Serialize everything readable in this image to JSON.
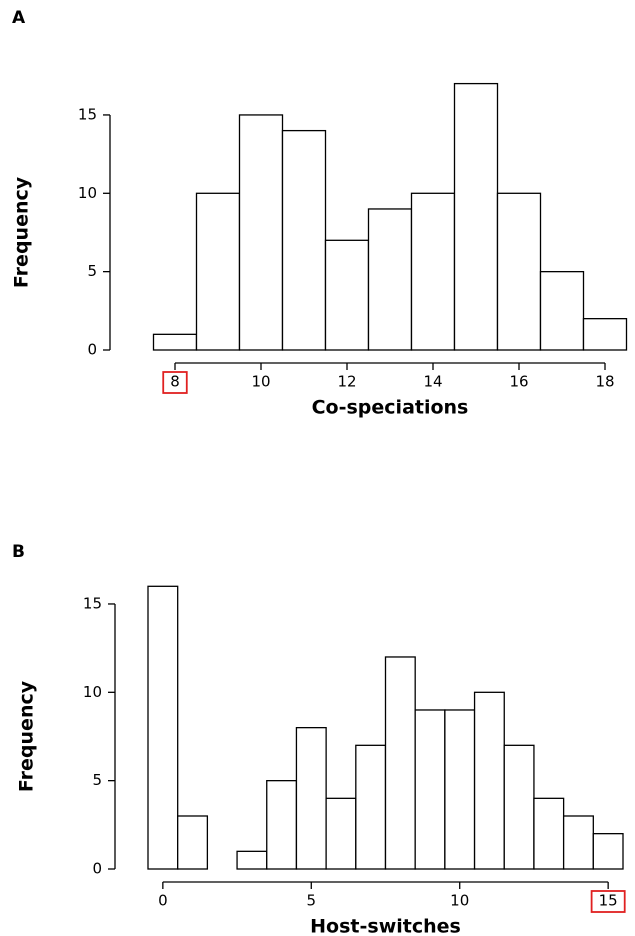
{
  "chart_data": [
    {
      "type": "histogram",
      "panel": "A",
      "xlabel": "Co-speciations",
      "ylabel": "Frequency",
      "bins": [
        7.5,
        8.5,
        9.5,
        10.5,
        11.5,
        12.5,
        13.5,
        14.5,
        15.5,
        16.5,
        17.5,
        18.5
      ],
      "counts": [
        1,
        10,
        15,
        14,
        7,
        9,
        10,
        17,
        10,
        5,
        2
      ],
      "color": "#ffffff",
      "edgecolor": "#000000",
      "xlim": [
        7.5,
        18.5
      ],
      "xticks": [
        8,
        10,
        12,
        14,
        16,
        18
      ],
      "ylim": [
        0,
        17
      ],
      "yticks": [
        0,
        5,
        10,
        15
      ],
      "highlight_xtick": 8,
      "highlight_color": "#e02020"
    },
    {
      "type": "histogram",
      "panel": "B",
      "xlabel": "Host-switches",
      "ylabel": "Frequency",
      "bins": [
        -0.5,
        0.5,
        1.5,
        2.5,
        3.5,
        4.5,
        5.5,
        6.5,
        7.5,
        8.5,
        9.5,
        10.5,
        11.5,
        12.5,
        13.5,
        14.5,
        15.5
      ],
      "counts": [
        16,
        3,
        0,
        1,
        5,
        8,
        4,
        7,
        12,
        9,
        9,
        10,
        7,
        4,
        3,
        2
      ],
      "color": "#ffffff",
      "edgecolor": "#000000",
      "xlim": [
        -0.5,
        15.5
      ],
      "xticks": [
        0,
        5,
        10,
        15
      ],
      "ylim": [
        0,
        16
      ],
      "yticks": [
        0,
        5,
        10,
        15
      ],
      "highlight_xtick": 15,
      "highlight_color": "#e02020"
    }
  ]
}
